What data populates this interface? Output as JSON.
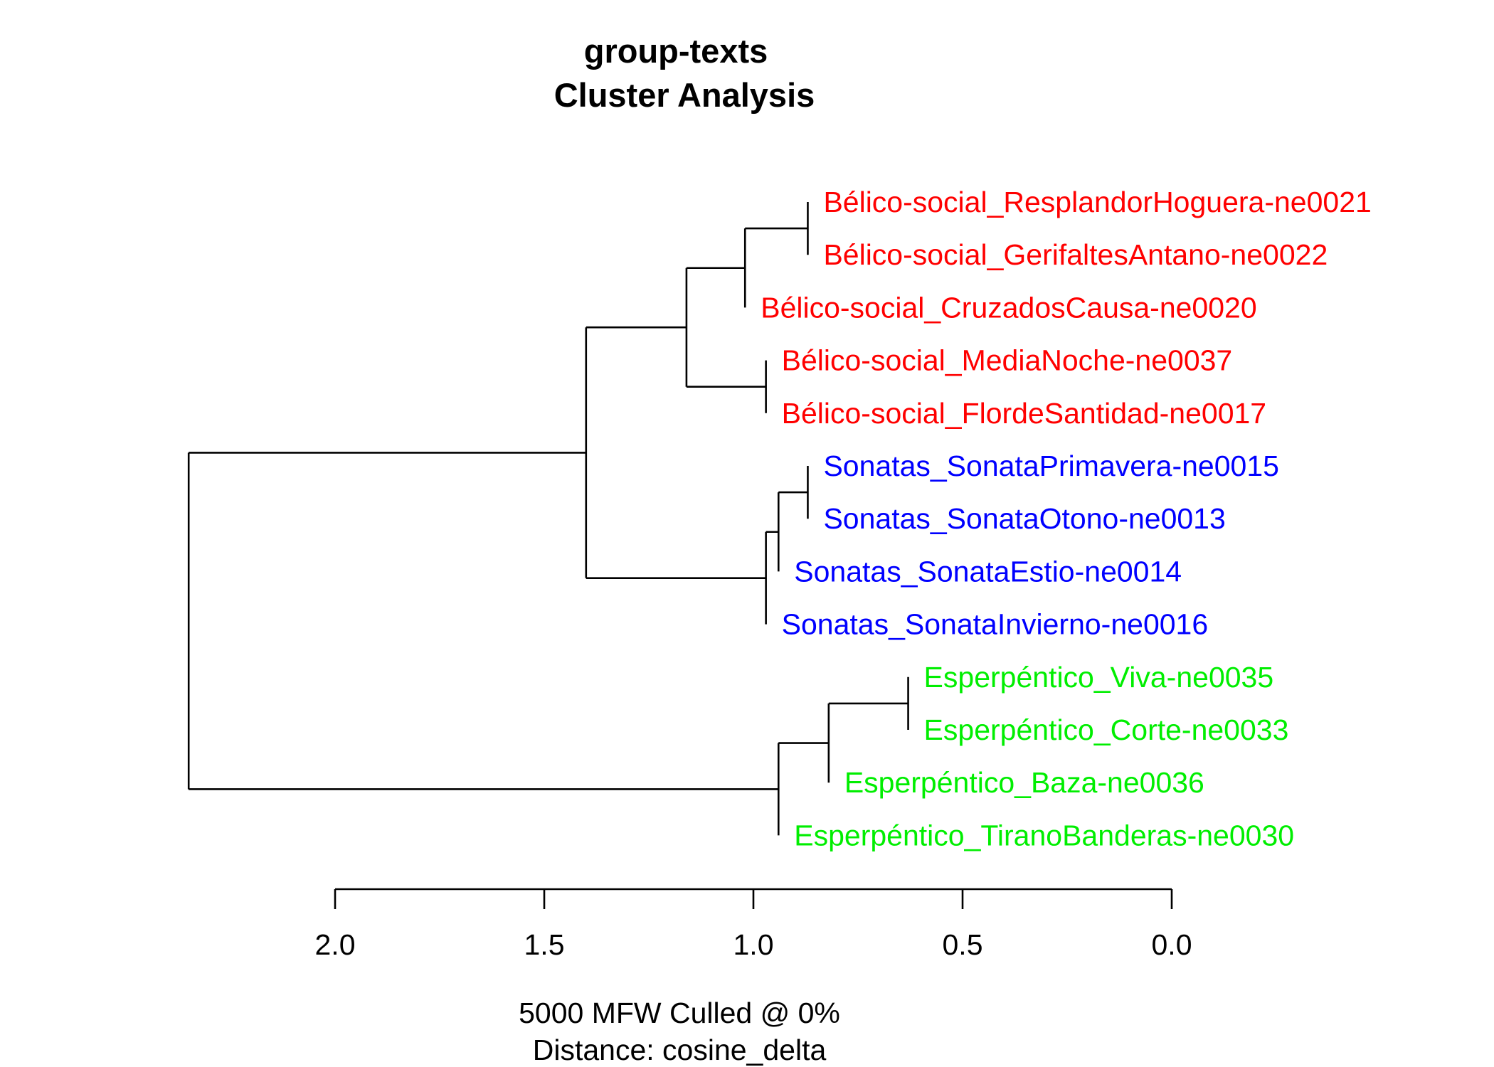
{
  "chart_data": {
    "type": "dendrogram",
    "title": "group-texts",
    "subtitle": "Cluster Analysis",
    "footer": [
      "5000 MFW  Culled @ 0%",
      "Distance: cosine_delta"
    ],
    "xlim": [
      2.0,
      0.0
    ],
    "ticks": [
      2.0,
      1.5,
      1.0,
      0.5,
      0.0
    ],
    "tick_labels": [
      "2.0",
      "1.5",
      "1.0",
      "0.5",
      "0.0"
    ],
    "grid": false,
    "colors": {
      "Bélico-social": "#ff0000",
      "Sonatas": "#0000ff",
      "Esperpéntico": "#00ee00"
    },
    "leaves": [
      {
        "label": "Bélico-social_ResplandorHoguera-ne0021",
        "group": "Bélico-social",
        "height": 0.87
      },
      {
        "label": "Bélico-social_GerifaltesAntano-ne0022",
        "group": "Bélico-social",
        "height": 0.87
      },
      {
        "label": "Bélico-social_CruzadosCausa-ne0020",
        "group": "Bélico-social",
        "height": 1.02
      },
      {
        "label": "Bélico-social_MediaNoche-ne0037",
        "group": "Bélico-social",
        "height": 0.97
      },
      {
        "label": "Bélico-social_FlordeSantidad-ne0017",
        "group": "Bélico-social",
        "height": 0.97
      },
      {
        "label": "Sonatas_SonataPrimavera-ne0015",
        "group": "Sonatas",
        "height": 0.87
      },
      {
        "label": "Sonatas_SonataOtono-ne0013",
        "group": "Sonatas",
        "height": 0.87
      },
      {
        "label": "Sonatas_SonataEstio-ne0014",
        "group": "Sonatas",
        "height": 0.94
      },
      {
        "label": "Sonatas_SonataInvierno-ne0016",
        "group": "Sonatas",
        "height": 0.97
      },
      {
        "label": "Esperpéntico_Viva-ne0035",
        "group": "Esperpéntico",
        "height": 0.63
      },
      {
        "label": "Esperpéntico_Corte-ne0033",
        "group": "Esperpéntico",
        "height": 0.63
      },
      {
        "label": "Esperpéntico_Baza-ne0036",
        "group": "Esperpéntico",
        "height": 0.82
      },
      {
        "label": "Esperpéntico_TiranoBanderas-ne0030",
        "group": "Esperpéntico",
        "height": 0.94
      }
    ],
    "merges": [
      {
        "height": 0.87,
        "children": [
          "L0",
          "L1"
        ]
      },
      {
        "height": 1.02,
        "children": [
          "M0",
          "L2"
        ]
      },
      {
        "height": 0.97,
        "children": [
          "L3",
          "L4"
        ]
      },
      {
        "height": 1.16,
        "children": [
          "M1",
          "M2"
        ]
      },
      {
        "height": 0.87,
        "children": [
          "L5",
          "L6"
        ]
      },
      {
        "height": 0.94,
        "children": [
          "M4",
          "L7"
        ]
      },
      {
        "height": 0.97,
        "children": [
          "M5",
          "L8"
        ]
      },
      {
        "height": 1.4,
        "children": [
          "M3",
          "M6"
        ]
      },
      {
        "height": 0.63,
        "children": [
          "L9",
          "L10"
        ]
      },
      {
        "height": 0.82,
        "children": [
          "M8",
          "L11"
        ]
      },
      {
        "height": 0.94,
        "children": [
          "M9",
          "L12"
        ]
      },
      {
        "height": 2.35,
        "children": [
          "M7",
          "M10"
        ]
      }
    ]
  }
}
